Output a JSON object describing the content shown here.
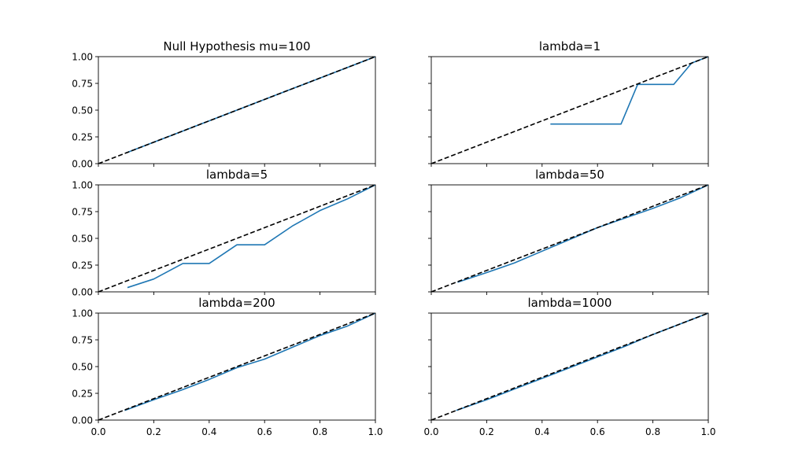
{
  "chart_data": [
    {
      "type": "line",
      "title": "Null Hypothesis mu=100",
      "xlim": [
        0,
        1
      ],
      "ylim": [
        0,
        1
      ],
      "x_ticks": [
        "0.0",
        "0.2",
        "0.4",
        "0.6",
        "0.8",
        "1.0"
      ],
      "y_ticks": [
        "0.00",
        "0.25",
        "0.50",
        "0.75",
        "1.00"
      ],
      "show_x_tick_labels": false,
      "show_y_tick_labels": true,
      "reference_line": {
        "style": "dashed",
        "color": "#000000",
        "points": [
          [
            0,
            0
          ],
          [
            1,
            1
          ]
        ]
      },
      "series": [
        {
          "color": "#1f77b4",
          "points": [
            [
              0.1,
              0.1
            ],
            [
              0.2,
              0.2
            ],
            [
              0.3,
              0.3
            ],
            [
              0.4,
              0.4
            ],
            [
              0.5,
              0.5
            ],
            [
              0.6,
              0.6
            ],
            [
              0.7,
              0.7
            ],
            [
              0.8,
              0.8
            ],
            [
              0.9,
              0.9
            ],
            [
              1.0,
              1.0
            ]
          ]
        }
      ]
    },
    {
      "type": "line",
      "title": "lambda=1",
      "xlim": [
        0,
        1
      ],
      "ylim": [
        0,
        1
      ],
      "x_ticks": [
        "0.0",
        "0.2",
        "0.4",
        "0.6",
        "0.8",
        "1.0"
      ],
      "y_ticks": [
        "0.00",
        "0.25",
        "0.50",
        "0.75",
        "1.00"
      ],
      "show_x_tick_labels": false,
      "show_y_tick_labels": false,
      "reference_line": {
        "style": "dashed",
        "color": "#000000",
        "points": [
          [
            0,
            0
          ],
          [
            1,
            1
          ]
        ]
      },
      "series": [
        {
          "color": "#1f77b4",
          "points": [
            [
              0.43,
              0.37
            ],
            [
              0.685,
              0.37
            ],
            [
              0.745,
              0.74
            ],
            [
              0.875,
              0.74
            ],
            [
              0.94,
              0.94
            ],
            [
              1.0,
              1.0
            ]
          ]
        }
      ]
    },
    {
      "type": "line",
      "title": "lambda=5",
      "xlim": [
        0,
        1
      ],
      "ylim": [
        0,
        1
      ],
      "x_ticks": [
        "0.0",
        "0.2",
        "0.4",
        "0.6",
        "0.8",
        "1.0"
      ],
      "y_ticks": [
        "0.00",
        "0.25",
        "0.50",
        "0.75",
        "1.00"
      ],
      "show_x_tick_labels": false,
      "show_y_tick_labels": true,
      "reference_line": {
        "style": "dashed",
        "color": "#000000",
        "points": [
          [
            0,
            0
          ],
          [
            1,
            1
          ]
        ]
      },
      "series": [
        {
          "color": "#1f77b4",
          "points": [
            [
              0.105,
              0.04
            ],
            [
              0.2,
              0.12
            ],
            [
              0.305,
              0.265
            ],
            [
              0.4,
              0.265
            ],
            [
              0.5,
              0.44
            ],
            [
              0.6,
              0.44
            ],
            [
              0.7,
              0.615
            ],
            [
              0.8,
              0.76
            ],
            [
              0.9,
              0.87
            ],
            [
              1.0,
              1.0
            ]
          ]
        }
      ]
    },
    {
      "type": "line",
      "title": "lambda=50",
      "xlim": [
        0,
        1
      ],
      "ylim": [
        0,
        1
      ],
      "x_ticks": [
        "0.0",
        "0.2",
        "0.4",
        "0.6",
        "0.8",
        "1.0"
      ],
      "y_ticks": [
        "0.00",
        "0.25",
        "0.50",
        "0.75",
        "1.00"
      ],
      "show_x_tick_labels": false,
      "show_y_tick_labels": false,
      "reference_line": {
        "style": "dashed",
        "color": "#000000",
        "points": [
          [
            0,
            0
          ],
          [
            1,
            1
          ]
        ]
      },
      "series": [
        {
          "color": "#1f77b4",
          "points": [
            [
              0.095,
              0.09
            ],
            [
              0.2,
              0.18
            ],
            [
              0.3,
              0.27
            ],
            [
              0.4,
              0.38
            ],
            [
              0.5,
              0.49
            ],
            [
              0.6,
              0.6
            ],
            [
              0.7,
              0.69
            ],
            [
              0.8,
              0.78
            ],
            [
              0.9,
              0.88
            ],
            [
              1.0,
              1.0
            ]
          ]
        }
      ]
    },
    {
      "type": "line",
      "title": "lambda=200",
      "xlim": [
        0,
        1
      ],
      "ylim": [
        0,
        1
      ],
      "x_ticks": [
        "0.0",
        "0.2",
        "0.4",
        "0.6",
        "0.8",
        "1.0"
      ],
      "y_ticks": [
        "0.00",
        "0.25",
        "0.50",
        "0.75",
        "1.00"
      ],
      "show_x_tick_labels": true,
      "show_y_tick_labels": true,
      "reference_line": {
        "style": "dashed",
        "color": "#000000",
        "points": [
          [
            0,
            0
          ],
          [
            1,
            1
          ]
        ]
      },
      "series": [
        {
          "color": "#1f77b4",
          "points": [
            [
              0.095,
              0.09
            ],
            [
              0.2,
              0.19
            ],
            [
              0.3,
              0.28
            ],
            [
              0.4,
              0.38
            ],
            [
              0.5,
              0.49
            ],
            [
              0.6,
              0.57
            ],
            [
              0.7,
              0.68
            ],
            [
              0.8,
              0.79
            ],
            [
              0.9,
              0.88
            ],
            [
              1.0,
              1.0
            ]
          ]
        }
      ]
    },
    {
      "type": "line",
      "title": "lambda=1000",
      "xlim": [
        0,
        1
      ],
      "ylim": [
        0,
        1
      ],
      "x_ticks": [
        "0.0",
        "0.2",
        "0.4",
        "0.6",
        "0.8",
        "1.0"
      ],
      "y_ticks": [
        "0.00",
        "0.25",
        "0.50",
        "0.75",
        "1.00"
      ],
      "show_x_tick_labels": true,
      "show_y_tick_labels": false,
      "reference_line": {
        "style": "dashed",
        "color": "#000000",
        "points": [
          [
            0,
            0
          ],
          [
            1,
            1
          ]
        ]
      },
      "series": [
        {
          "color": "#1f77b4",
          "points": [
            [
              0.09,
              0.09
            ],
            [
              0.2,
              0.19
            ],
            [
              0.3,
              0.29
            ],
            [
              0.4,
              0.39
            ],
            [
              0.5,
              0.49
            ],
            [
              0.6,
              0.59
            ],
            [
              0.7,
              0.69
            ],
            [
              0.8,
              0.8
            ],
            [
              0.9,
              0.9
            ],
            [
              1.0,
              1.0
            ]
          ]
        }
      ]
    }
  ]
}
